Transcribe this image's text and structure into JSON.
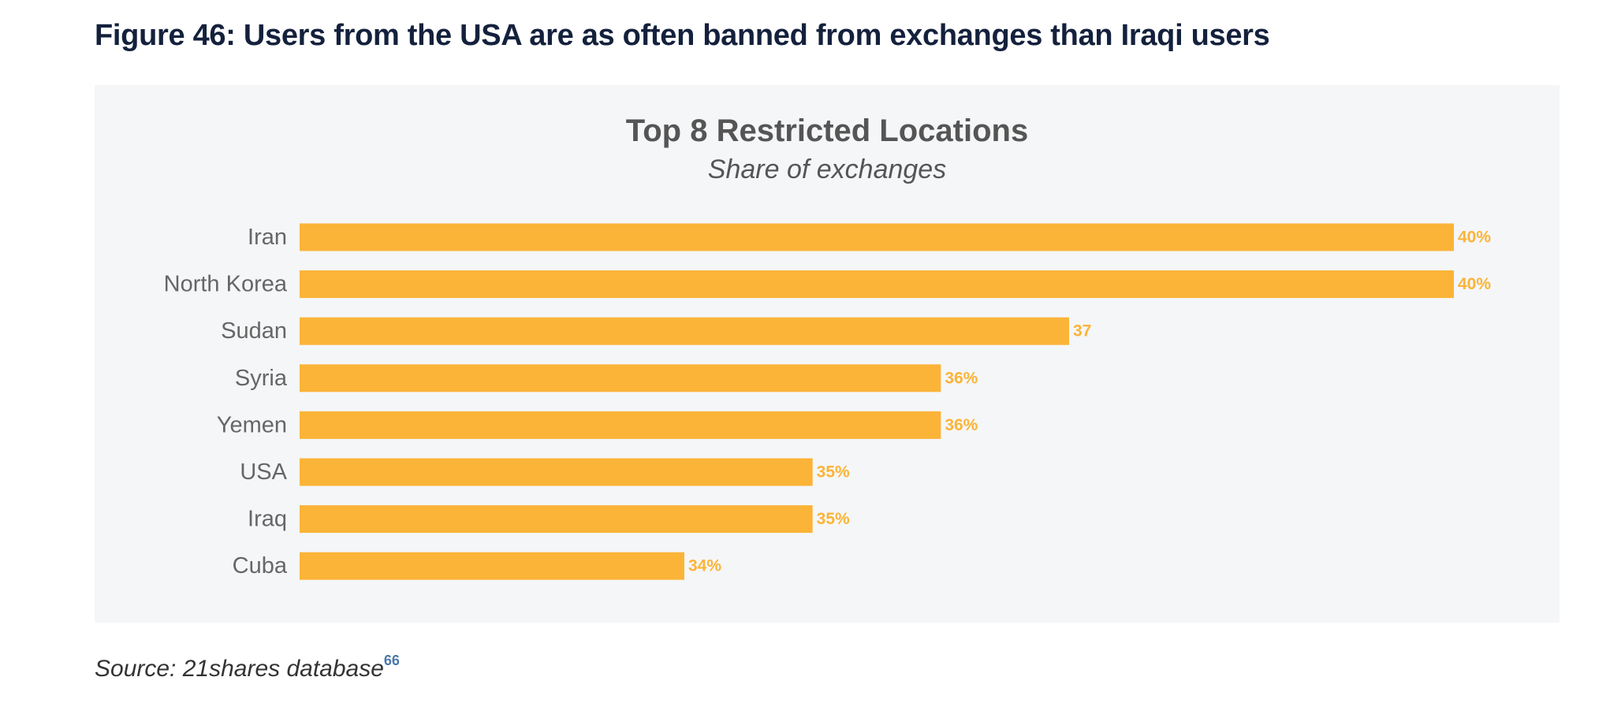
{
  "figure": {
    "title": "Figure 46: Users from the USA are as often banned from exchanges than Iraqi users",
    "source_text": "Source: 21shares database",
    "source_footnote": "66"
  },
  "colors": {
    "bar": "#fbb437",
    "label": "#fbb437",
    "category_text": "#666666",
    "panel_bg": "#f5f6f8"
  },
  "chart_data": {
    "type": "bar",
    "orientation": "horizontal",
    "title": "Top 8 Restricted Locations",
    "subtitle": "Share of exchanges",
    "categories": [
      "Iran",
      "North Korea",
      "Sudan",
      "Syria",
      "Yemen",
      "USA",
      "Iraq",
      "Cuba"
    ],
    "values": [
      40,
      40,
      37,
      36,
      36,
      35,
      35,
      34
    ],
    "data_labels": [
      "40%",
      "40%",
      "37",
      "36%",
      "36%",
      "35%",
      "35%",
      "34%"
    ],
    "xlim": [
      31,
      40
    ],
    "xlabel": "",
    "ylabel": "",
    "grid": false,
    "legend": "none"
  }
}
